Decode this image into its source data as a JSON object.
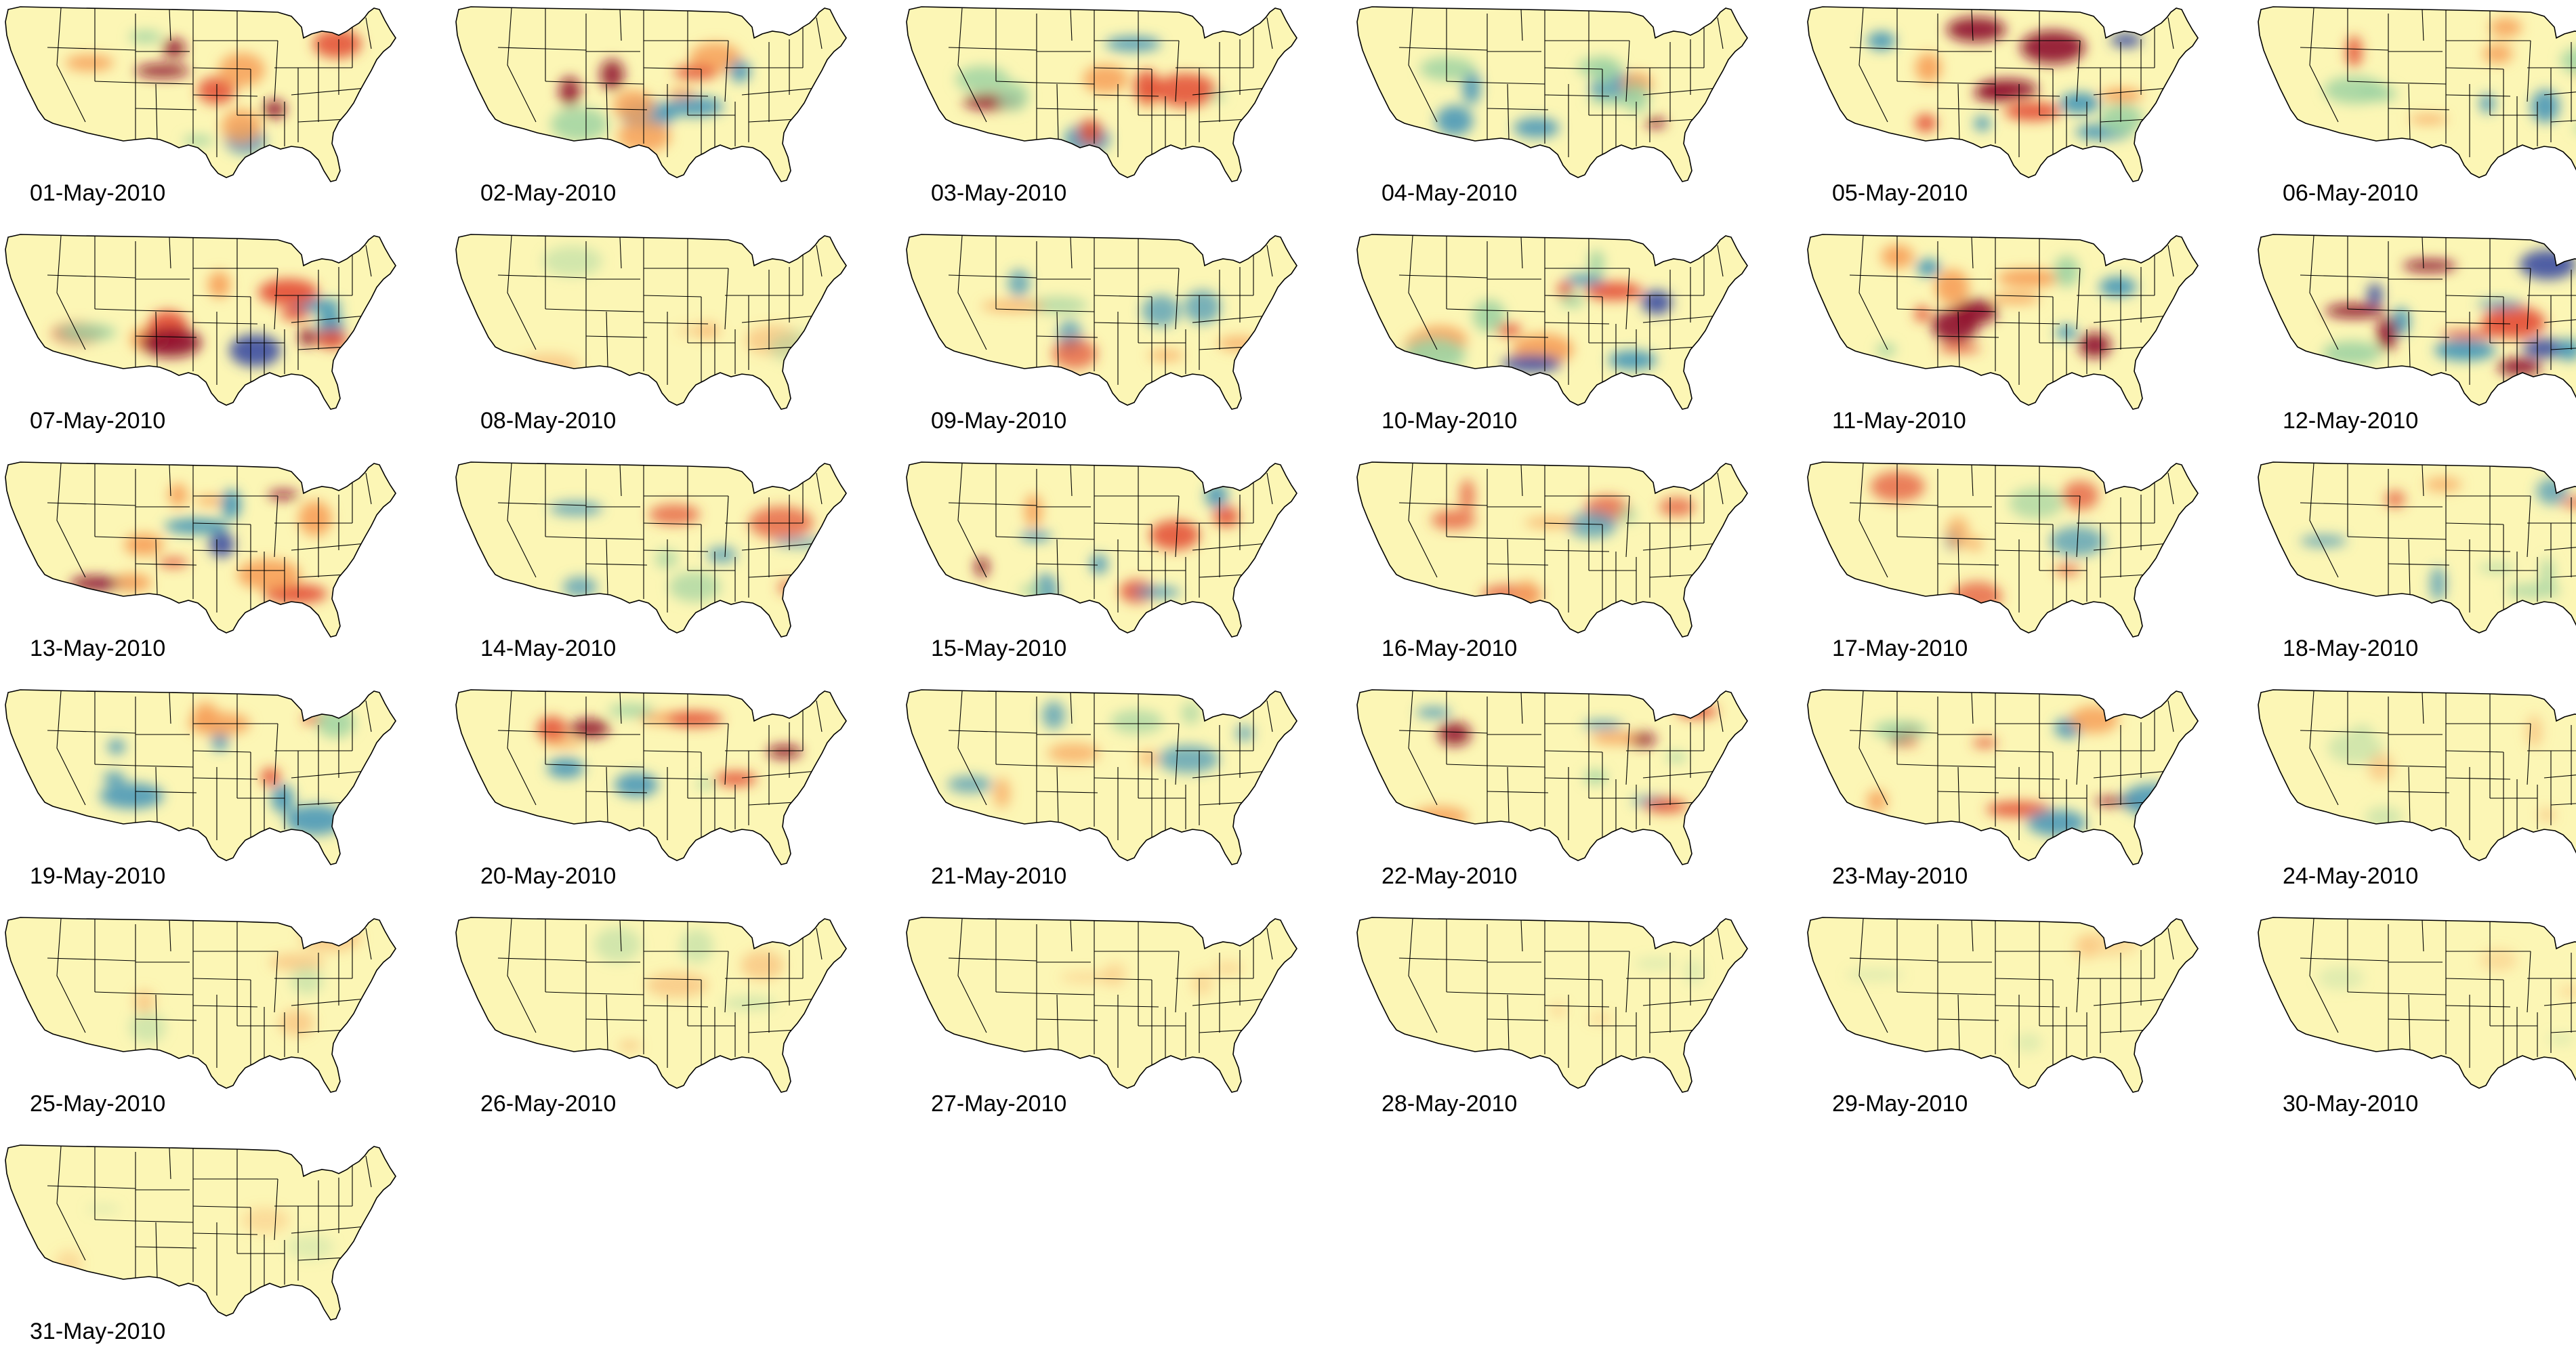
{
  "figure": {
    "subject": "United States daily anomaly maps",
    "colors": {
      "land_base": "#fcf6b5",
      "state_border": "#000000",
      "high_anomaly": "#8e0c2c",
      "mid_high": "#e34b33",
      "mild_high": "#f7a05a",
      "mild_low": "#9fd3a2",
      "mid_low": "#3f93b8",
      "low_anomaly": "#3c4ea2"
    }
  },
  "panels": [
    {
      "date": "01-May-2010",
      "intensity": "high"
    },
    {
      "date": "02-May-2010",
      "intensity": "high"
    },
    {
      "date": "03-May-2010",
      "intensity": "high"
    },
    {
      "date": "04-May-2010",
      "intensity": "high"
    },
    {
      "date": "05-May-2010",
      "intensity": "very-high"
    },
    {
      "date": "06-May-2010",
      "intensity": "high"
    },
    {
      "date": "07-May-2010",
      "intensity": "very-high"
    },
    {
      "date": "08-May-2010",
      "intensity": "low"
    },
    {
      "date": "09-May-2010",
      "intensity": "medium"
    },
    {
      "date": "10-May-2010",
      "intensity": "very-high"
    },
    {
      "date": "11-May-2010",
      "intensity": "very-high"
    },
    {
      "date": "12-May-2010",
      "intensity": "very-high"
    },
    {
      "date": "13-May-2010",
      "intensity": "very-high"
    },
    {
      "date": "14-May-2010",
      "intensity": "medium"
    },
    {
      "date": "15-May-2010",
      "intensity": "high"
    },
    {
      "date": "16-May-2010",
      "intensity": "medium"
    },
    {
      "date": "17-May-2010",
      "intensity": "medium"
    },
    {
      "date": "18-May-2010",
      "intensity": "medium"
    },
    {
      "date": "19-May-2010",
      "intensity": "high"
    },
    {
      "date": "20-May-2010",
      "intensity": "high"
    },
    {
      "date": "21-May-2010",
      "intensity": "medium"
    },
    {
      "date": "22-May-2010",
      "intensity": "high"
    },
    {
      "date": "23-May-2010",
      "intensity": "high"
    },
    {
      "date": "24-May-2010",
      "intensity": "low"
    },
    {
      "date": "25-May-2010",
      "intensity": "low"
    },
    {
      "date": "26-May-2010",
      "intensity": "low"
    },
    {
      "date": "27-May-2010",
      "intensity": "very-low"
    },
    {
      "date": "28-May-2010",
      "intensity": "very-low"
    },
    {
      "date": "29-May-2010",
      "intensity": "very-low"
    },
    {
      "date": "30-May-2010",
      "intensity": "very-low"
    },
    {
      "date": "31-May-2010",
      "intensity": "very-low"
    }
  ]
}
